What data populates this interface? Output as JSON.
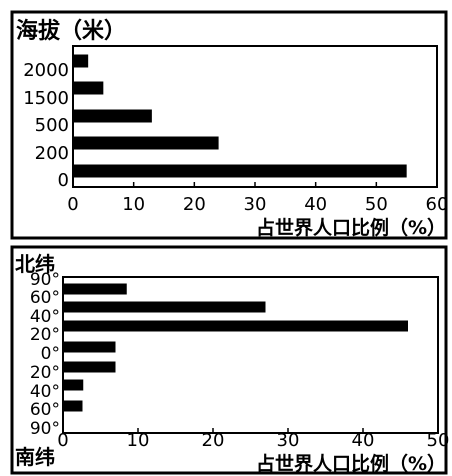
{
  "chart_data": [
    {
      "type": "bar",
      "orientation": "horizontal",
      "title": "海拔（米）",
      "xlabel": "占世界人口比例（%）",
      "categories": [
        "0",
        "200",
        "500",
        "1500",
        "2000"
      ],
      "category_ticks": [
        "0",
        "200",
        "500",
        "1500",
        "2000"
      ],
      "values": [
        55,
        24,
        13,
        5,
        2.5
      ],
      "xlim": [
        0,
        60
      ],
      "xticks": [
        "0",
        "10",
        "20",
        "30",
        "40",
        "50",
        "60"
      ],
      "grid": false
    },
    {
      "type": "bar",
      "orientation": "horizontal",
      "title": "北纬",
      "bottom_label": "南纬",
      "xlabel": "占世界人口比例（%）",
      "categories": [
        "60–90°N",
        "40–60°N",
        "20–40°N",
        "0–20°N",
        "0–20°S",
        "20–40°S",
        "40–60°S",
        "60–90°S"
      ],
      "category_ticks": [
        "90°",
        "60°",
        "40°",
        "20°",
        "0°",
        "20°",
        "40°",
        "60°",
        "90°"
      ],
      "values": [
        8.5,
        27,
        46,
        7,
        7,
        2.7,
        2.6,
        0
      ],
      "xlim": [
        0,
        50
      ],
      "xticks": [
        "0",
        "10",
        "20",
        "30",
        "40",
        "50"
      ],
      "grid": false
    }
  ]
}
